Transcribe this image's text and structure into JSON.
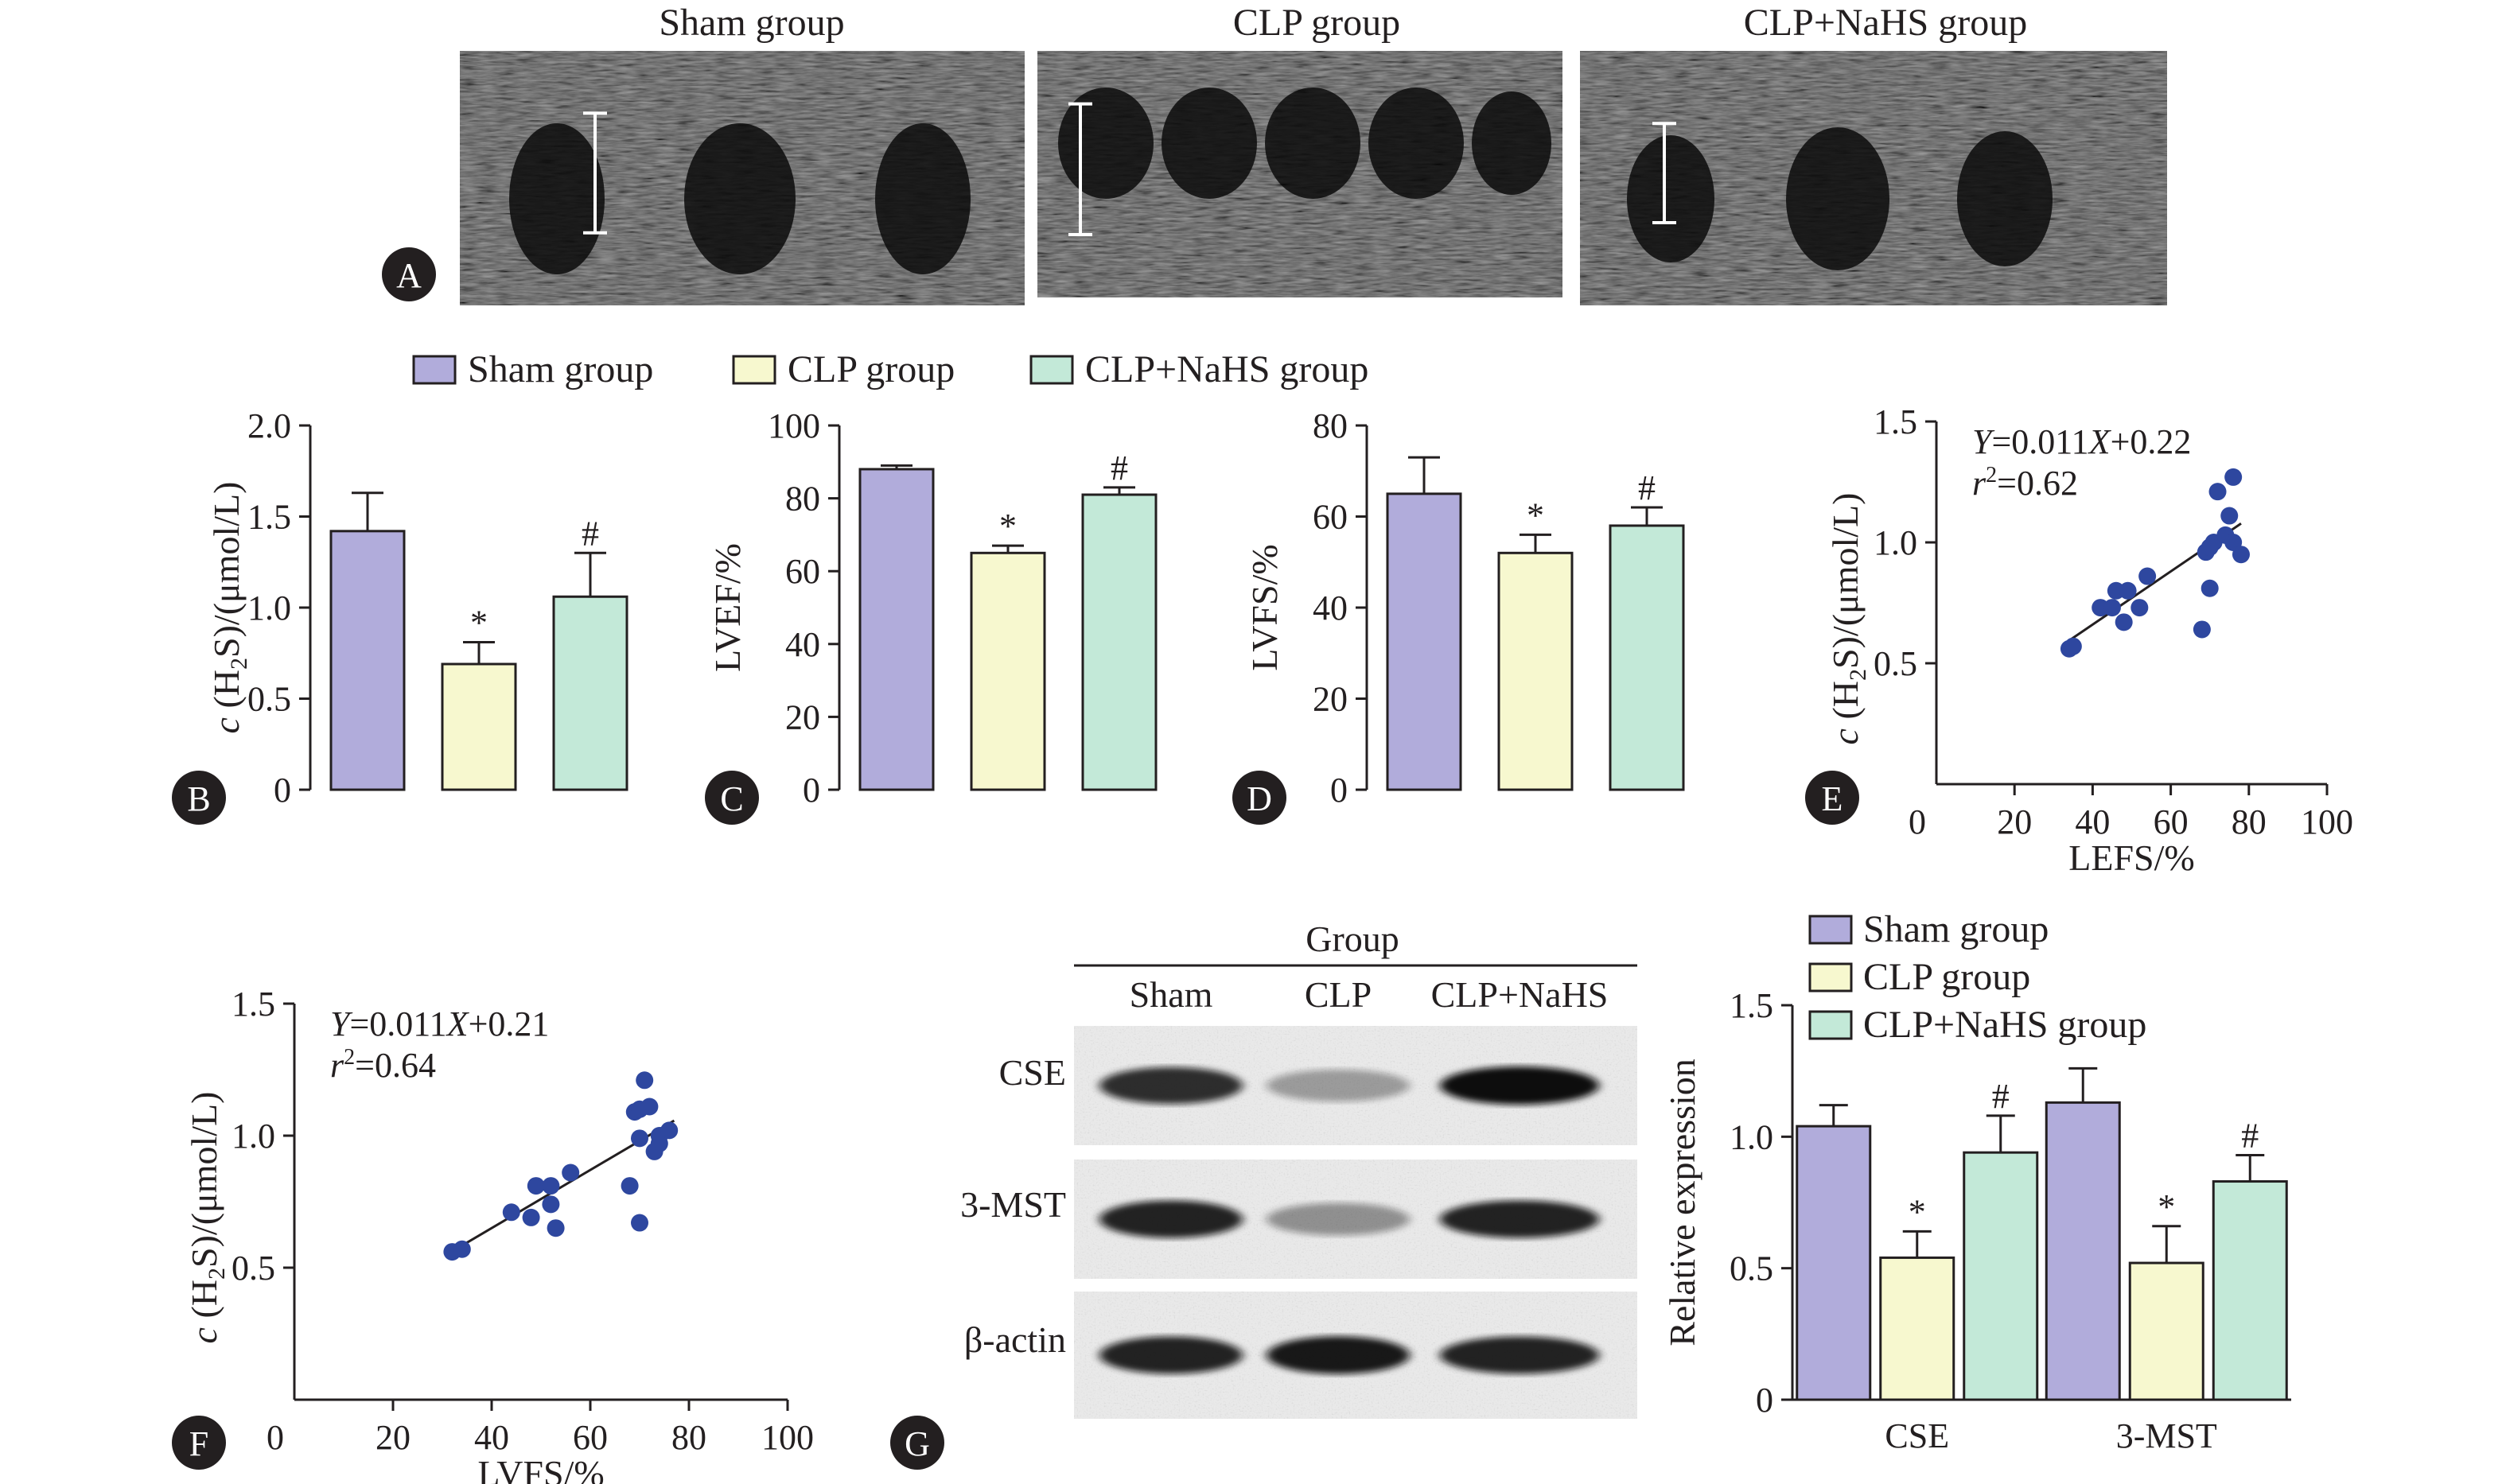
{
  "colors": {
    "sham": "#b1acdb",
    "clp": "#f7f8cf",
    "nahs": "#c3e9d8",
    "point": "#2e479f",
    "ink": "#231f20"
  },
  "legend_groups": [
    "Sham group",
    "CLP group",
    "CLP+NaHS group"
  ],
  "panel_letters": [
    "A",
    "B",
    "C",
    "D",
    "E",
    "F",
    "G"
  ],
  "echo": {
    "titles": [
      "Sham group",
      "CLP group",
      "CLP+NaHS group"
    ],
    "caliper_heights": [
      0.47,
      0.53,
      0.39
    ]
  },
  "chart_data": [
    {
      "panel": "B",
      "type": "bar",
      "categories": [
        "Sham group",
        "CLP group",
        "CLP+NaHS group"
      ],
      "values": [
        1.42,
        0.69,
        1.06
      ],
      "errors": [
        0.21,
        0.12,
        0.24
      ],
      "sig": [
        "",
        "*",
        "#"
      ],
      "ylabel_c": "c",
      "ylabel_rest": " (H",
      "ylabel_sub": "2",
      "ylabel_end": "S)/(μmol/L)",
      "ylim": [
        0,
        2.0
      ],
      "ticks": [
        0,
        0.5,
        1.0,
        1.5,
        2.0
      ],
      "tick_labels": [
        "0",
        "0.5",
        "1.0",
        "1.5",
        "2.0"
      ]
    },
    {
      "panel": "C",
      "type": "bar",
      "categories": [
        "Sham group",
        "CLP group",
        "CLP+NaHS group"
      ],
      "values": [
        88,
        65,
        81
      ],
      "errors": [
        1,
        2,
        2
      ],
      "sig": [
        "",
        "*",
        "#"
      ],
      "ylabel": "LVEF/%",
      "ylim": [
        0,
        100
      ],
      "ticks": [
        0,
        20,
        40,
        60,
        80,
        100
      ],
      "tick_labels": [
        "0",
        "20",
        "40",
        "60",
        "80",
        "100"
      ]
    },
    {
      "panel": "D",
      "type": "bar",
      "categories": [
        "Sham group",
        "CLP group",
        "CLP+NaHS group"
      ],
      "values": [
        65,
        52,
        58
      ],
      "errors": [
        8,
        4,
        4
      ],
      "sig": [
        "",
        "*",
        "#"
      ],
      "ylabel": "LVFS/%",
      "ylim": [
        0,
        80
      ],
      "ticks": [
        0,
        20,
        40,
        60,
        80
      ],
      "tick_labels": [
        "0",
        "20",
        "40",
        "60",
        "80"
      ]
    },
    {
      "panel": "E",
      "type": "scatter",
      "equation_y": "Y",
      "equation_mid": "=0.011",
      "equation_x": "X",
      "equation_end": "+0.22",
      "r2_r": "r",
      "r2_sup": "2",
      "r2_val": "=0.62",
      "xlabel": "LEFS/%",
      "ylabel_c": "c",
      "ylabel_rest": " (H",
      "ylabel_sub": "2",
      "ylabel_end": "S)/(μmol/L)",
      "xlim": [
        0,
        100
      ],
      "ylim": [
        0,
        1.5
      ],
      "xticks": [
        0,
        20,
        40,
        60,
        80,
        100
      ],
      "xtick_labels": [
        "0",
        "20",
        "40",
        "60",
        "80",
        "100"
      ],
      "yticks": [
        0.5,
        1.0,
        1.5
      ],
      "ytick_labels": [
        "0.5",
        "1.0",
        "1.5"
      ],
      "slope": 0.011,
      "intercept": 0.22,
      "fit_x": [
        34,
        78
      ],
      "x": [
        34,
        35,
        42,
        45,
        46,
        48,
        49,
        52,
        54,
        68,
        69,
        70,
        71,
        72,
        74,
        75,
        76,
        76,
        78,
        70
      ],
      "y": [
        0.56,
        0.57,
        0.73,
        0.73,
        0.8,
        0.67,
        0.8,
        0.73,
        0.86,
        0.64,
        0.96,
        0.81,
        1.0,
        1.21,
        1.03,
        1.11,
        1.27,
        1.0,
        0.95,
        0.98
      ]
    },
    {
      "panel": "F",
      "type": "scatter",
      "equation_y": "Y",
      "equation_mid": "=0.011",
      "equation_x": "X",
      "equation_end": "+0.21",
      "r2_r": "r",
      "r2_sup": "2",
      "r2_val": "=0.64",
      "xlabel": "LVFS/%",
      "ylabel_c": "c",
      "ylabel_rest": " (H",
      "ylabel_sub": "2",
      "ylabel_end": "S)/(μmol/L)",
      "xlim": [
        0,
        100
      ],
      "ylim": [
        0,
        1.5
      ],
      "xticks": [
        0,
        20,
        40,
        60,
        80,
        100
      ],
      "xtick_labels": [
        "0",
        "20",
        "40",
        "60",
        "80",
        "100"
      ],
      "yticks": [
        0.5,
        1.0,
        1.5
      ],
      "ytick_labels": [
        "0.5",
        "1.0",
        "1.5"
      ],
      "slope": 0.011,
      "intercept": 0.21,
      "fit_x": [
        32,
        77
      ],
      "x": [
        32,
        34,
        44,
        48,
        49,
        52,
        52,
        53,
        56,
        68,
        69,
        70,
        70,
        71,
        72,
        73,
        74,
        74,
        76,
        70
      ],
      "y": [
        0.56,
        0.57,
        0.71,
        0.69,
        0.81,
        0.81,
        0.74,
        0.65,
        0.86,
        0.81,
        1.09,
        0.67,
        0.99,
        1.21,
        1.11,
        0.94,
        0.97,
        1.0,
        1.02,
        1.1
      ]
    },
    {
      "panel": "G-chart",
      "type": "bar",
      "categories": [
        "CSE",
        "3-MST"
      ],
      "series": [
        {
          "name": "Sham group",
          "values": [
            1.04,
            1.13
          ],
          "errors": [
            0.08,
            0.13
          ],
          "sig": [
            "",
            ""
          ]
        },
        {
          "name": "CLP group",
          "values": [
            0.54,
            0.52
          ],
          "errors": [
            0.1,
            0.14
          ],
          "sig": [
            "*",
            "*"
          ]
        },
        {
          "name": "CLP+NaHS group",
          "values": [
            0.94,
            0.83
          ],
          "errors": [
            0.14,
            0.1
          ],
          "sig": [
            "#",
            "#"
          ]
        }
      ],
      "ylabel": "Relative expression",
      "ylim": [
        0,
        1.5
      ],
      "ticks": [
        0,
        0.5,
        1.0,
        1.5
      ],
      "tick_labels": [
        "0",
        "0.5",
        "1.0",
        "1.5"
      ]
    }
  ],
  "western_blot": {
    "group_title": "Group",
    "lanes": [
      "Sham",
      "CLP",
      "CLP+NaHS"
    ],
    "rows": [
      "CSE",
      "3-MST",
      "β-actin"
    ],
    "intensities": [
      [
        0.85,
        0.35,
        1.0
      ],
      [
        0.9,
        0.4,
        0.9
      ],
      [
        0.9,
        0.95,
        0.9
      ]
    ]
  }
}
